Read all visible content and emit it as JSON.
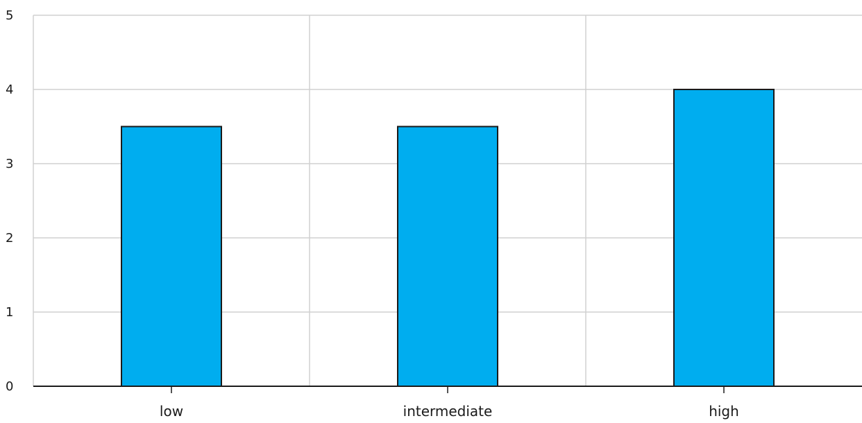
{
  "chart_data": {
    "type": "bar",
    "categories": [
      "low",
      "intermediate",
      "high"
    ],
    "values": [
      3.5,
      3.5,
      4
    ],
    "ylim": [
      0,
      5
    ],
    "yticks": [
      "0",
      "1",
      "2",
      "3",
      "4",
      "5"
    ],
    "title": "",
    "xlabel": "",
    "ylabel": "",
    "grid": true,
    "bar_color": "#00adef",
    "bar_edge_color": "#1a1a1a",
    "grid_color": "#d0d0d0",
    "axis_color": "#1a1a1a"
  }
}
